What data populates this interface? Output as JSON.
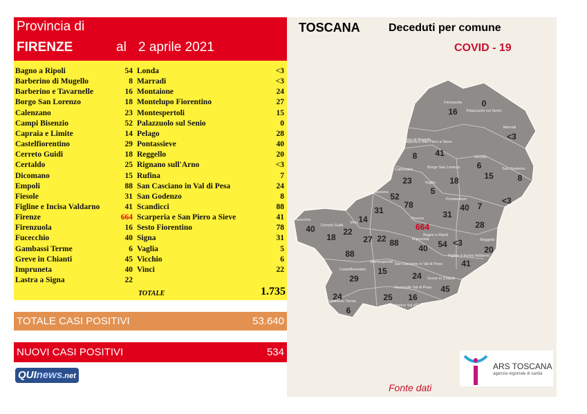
{
  "header": {
    "line1": "Provincia di",
    "province": "FIRENZE",
    "date_prefix": "al",
    "date": "2 aprile 2021"
  },
  "table": {
    "left": [
      [
        "Bagno a Ripoli",
        54
      ],
      [
        "Barberino di Mugello",
        8
      ],
      [
        "Barberino e Tavarnelle",
        16
      ],
      [
        "Borgo San Lorenzo",
        18
      ],
      [
        "Calenzano",
        23
      ],
      [
        "Campi Bisenzio",
        52
      ],
      [
        "Capraia e Limite",
        14
      ],
      [
        "Castelfiorentino",
        29
      ],
      [
        "Cerreto Guidi",
        18
      ],
      [
        "Certaldo",
        25
      ],
      [
        "Dicomano",
        15
      ],
      [
        "Empoli",
        88
      ],
      [
        "Fiesole",
        31
      ],
      [
        "Figline e Incisa Valdarno",
        41
      ],
      [
        "Firenze",
        664
      ],
      [
        "Firenzuola",
        16
      ],
      [
        "Fucecchio",
        40
      ],
      [
        "Gambassi Terme",
        6
      ],
      [
        "Greve in Chianti",
        45
      ],
      [
        "Impruneta",
        40
      ],
      [
        "Lastra a Signa",
        22
      ]
    ],
    "right": [
      [
        "Londa",
        "<3"
      ],
      [
        "Marradi",
        "<3"
      ],
      [
        "Montaione",
        24
      ],
      [
        "Montelupo Fiorentino",
        27
      ],
      [
        "Montespertoli",
        15
      ],
      [
        "Palazzuolo sul Senio",
        0
      ],
      [
        "Pelago",
        28
      ],
      [
        "Pontassieve",
        40
      ],
      [
        "Reggello",
        20
      ],
      [
        "Rignano sull'Arno",
        "<3"
      ],
      [
        "Rufina",
        7
      ],
      [
        "San Casciano in Val di Pesa",
        24
      ],
      [
        "San Godenzo",
        8
      ],
      [
        "Scandicci",
        88
      ],
      [
        "Scarperia e San Piero a Sieve",
        41
      ],
      [
        "Sesto Fiorentino",
        78
      ],
      [
        "Signa",
        31
      ],
      [
        "Vaglia",
        5
      ],
      [
        "Vicchio",
        6
      ],
      [
        "Vinci",
        22
      ]
    ],
    "total_label": "TOTALE",
    "total": "1.735"
  },
  "positives": {
    "label": "TOTALE CASI POSITIVI",
    "value": "53.640"
  },
  "new_positives": {
    "label": "NUOVI CASI POSITIVI",
    "value": 534
  },
  "logo": [
    "QUI",
    "news",
    ".net"
  ],
  "map": {
    "title": "TOSCANA",
    "subtitle": "Deceduti per comune",
    "tag": "COVID - 19",
    "source": "Fonte dati",
    "ars": {
      "name": "ARS TOSCANA",
      "tagline": "agenzia regionale di sanità"
    },
    "names": [
      "Firenzuola",
      "Palazzuolo sul Senio",
      "Marradi",
      "Scarperia e San Piero a Sieve",
      "Barberino di Mugello",
      "Borgo San Lorenzo",
      "Vicchio",
      "San Godenzo",
      "Calenzano",
      "Vaglia",
      "Montelupo Fiorentino",
      "Fucecchio",
      "Cerreto Guidi",
      "Vinci",
      "Firenze",
      "Pontassieve",
      "Bagno a Ripoli",
      "Reggello",
      "Impruneta",
      "Montespertoli",
      "San Casciano in Val di Pesa",
      "Castelfiorentino",
      "Greve in Chianti",
      "Figline e Incisa Valdarno",
      "Gambassi Terme",
      "Tavarnelle Val di Pesa",
      "Barberino Val d'Elsa"
    ],
    "numbers": [
      16,
      0,
      "<3",
      41,
      8,
      18,
      6,
      15,
      8,
      "<3",
      23,
      5,
      52,
      78,
      31,
      31,
      40,
      7,
      28,
      14,
      664,
      40,
      22,
      18,
      27,
      22,
      88,
      54,
      "<3",
      40,
      20,
      88,
      41,
      15,
      29,
      24,
      45,
      24,
      25,
      16,
      6
    ]
  }
}
